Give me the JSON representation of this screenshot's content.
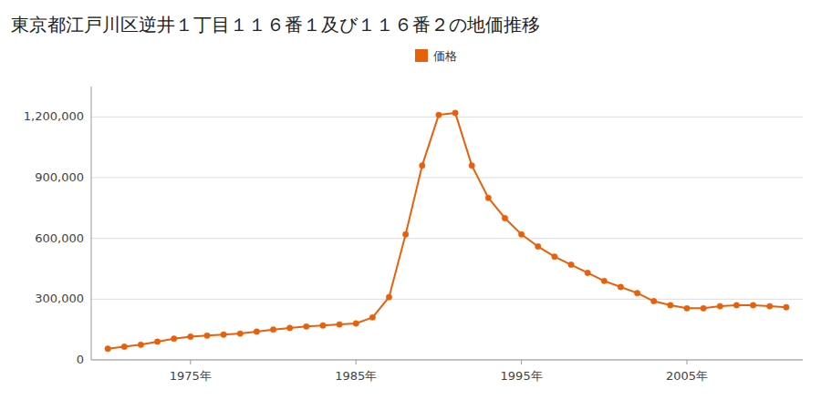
{
  "chart_data": {
    "type": "line",
    "title": "東京都江戸川区逆井１丁目１１６番１及び１１６番２の地価推移",
    "x": [
      1970,
      1971,
      1972,
      1973,
      1974,
      1975,
      1976,
      1977,
      1978,
      1979,
      1980,
      1981,
      1982,
      1983,
      1984,
      1985,
      1986,
      1987,
      1988,
      1989,
      1990,
      1991,
      1992,
      1993,
      1994,
      1995,
      1996,
      1997,
      1998,
      1999,
      2000,
      2001,
      2002,
      2003,
      2004,
      2005,
      2006,
      2007,
      2008,
      2009,
      2010,
      2011
    ],
    "series": [
      {
        "name": "価格",
        "color": "#e8600a",
        "marker": "circle",
        "line_style": "solid",
        "values": [
          55000,
          65000,
          75000,
          90000,
          105000,
          115000,
          120000,
          125000,
          130000,
          140000,
          150000,
          158000,
          165000,
          170000,
          175000,
          180000,
          210000,
          310000,
          620000,
          960000,
          1210000,
          1220000,
          960000,
          800000,
          700000,
          620000,
          560000,
          510000,
          470000,
          430000,
          390000,
          360000,
          330000,
          290000,
          270000,
          255000,
          255000,
          265000,
          270000,
          270000,
          265000,
          260000
        ]
      }
    ],
    "xlim": [
      1969,
      2012
    ],
    "xticks": [
      {
        "value": 1975,
        "label": "1975年"
      },
      {
        "value": 1985,
        "label": "1985年"
      },
      {
        "value": 1995,
        "label": "1995年"
      },
      {
        "value": 2005,
        "label": "2005年"
      }
    ],
    "ylim": [
      0,
      1350000
    ],
    "yticks": [
      0,
      {
        "value": 300000,
        "label": "300,000"
      },
      {
        "value": 600000,
        "label": "600,000"
      },
      {
        "value": 900000,
        "label": "900,000"
      },
      {
        "value": 1200000,
        "label": "1,200,000"
      }
    ],
    "grid": true,
    "legend": "top"
  }
}
